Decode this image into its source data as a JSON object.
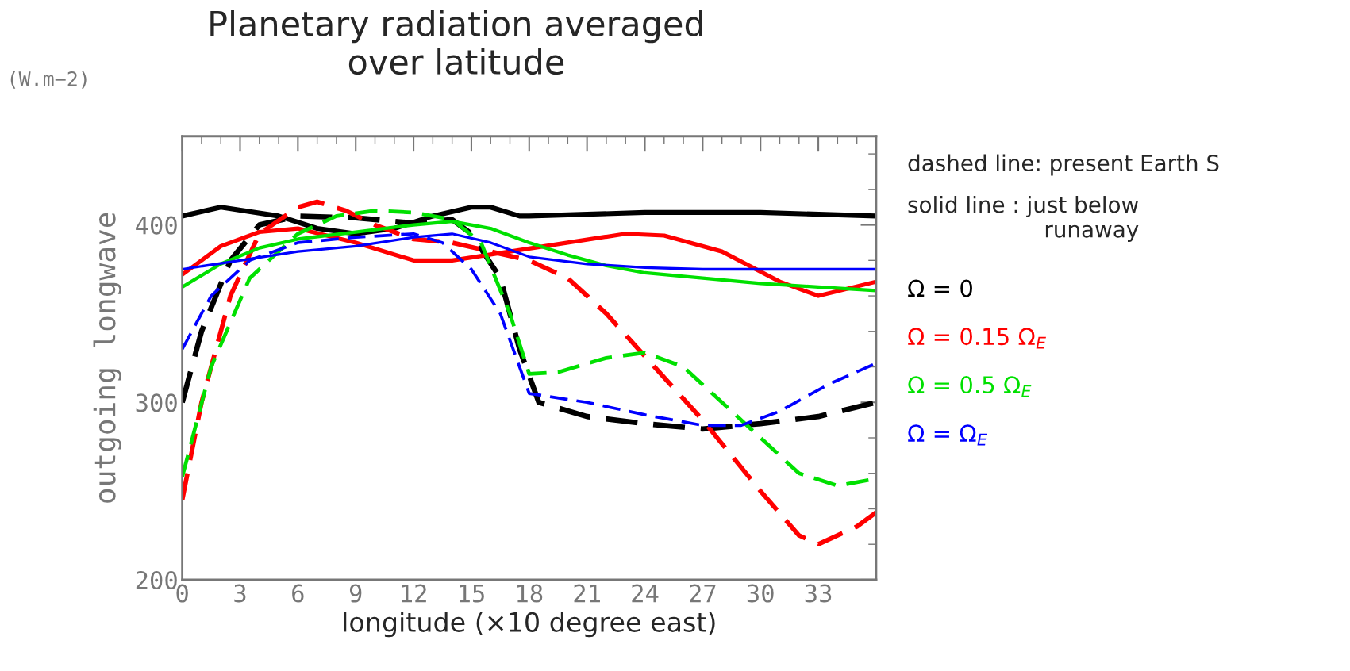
{
  "chart_data": {
    "type": "line",
    "title": "Planetary radiation averaged\nover latitude",
    "xlabel": "longitude (×10 degree east)",
    "ylabel": "outgoing longwave",
    "annotations": [
      "(W.m−2)",
      "dashed line: present Earth S",
      "solid line : just below\nrunaway"
    ],
    "xlim": [
      0,
      36
    ],
    "xticks": [
      0,
      3,
      6,
      9,
      12,
      15,
      18,
      21,
      24,
      27,
      30,
      33
    ],
    "ylim": [
      200,
      450
    ],
    "yticks": [
      200,
      300,
      400
    ],
    "grid": false,
    "legend": "right",
    "series": [
      {
        "name": "Ω = 0",
        "color": "#000000",
        "line_style": "dashed",
        "x": [
          0,
          1,
          2.5,
          4,
          6,
          9,
          12,
          14,
          15,
          16.5,
          17.5,
          18.5,
          21,
          24,
          27,
          30,
          33,
          36
        ],
        "values": [
          300,
          340,
          380,
          400,
          405,
          404,
          401,
          403,
          395,
          370,
          330,
          300,
          292,
          288,
          285,
          288,
          292,
          300
        ]
      },
      {
        "color": "#000000",
        "line_style": "solid",
        "x": [
          0,
          2,
          5,
          7,
          9,
          11,
          13,
          15,
          16,
          17.5,
          18,
          24,
          30,
          36
        ],
        "values": [
          405,
          410,
          405,
          398,
          395,
          398,
          405,
          410,
          410,
          405,
          405,
          407,
          407,
          405
        ]
      },
      {
        "name": "Ω = 0.15 Ω$_{E}$",
        "color": "#ff0000",
        "line_style": "dashed",
        "x": [
          0,
          1,
          2.5,
          4,
          6,
          7,
          8.5,
          10,
          12,
          14,
          16,
          18,
          20,
          22,
          24.5,
          27,
          30,
          32,
          33,
          35,
          36
        ],
        "values": [
          245,
          300,
          360,
          395,
          410,
          413,
          408,
          400,
          392,
          390,
          385,
          380,
          370,
          350,
          320,
          290,
          250,
          225,
          220,
          230,
          238
        ]
      },
      {
        "color": "#ff0000",
        "line_style": "solid",
        "x": [
          0,
          2,
          4,
          6,
          9,
          12,
          14,
          17,
          20,
          23,
          25,
          28,
          31,
          33,
          36
        ],
        "values": [
          372,
          388,
          396,
          398,
          390,
          380,
          380,
          385,
          390,
          395,
          394,
          385,
          368,
          360,
          368
        ]
      },
      {
        "name": "Ω = 0.5 Ω$_{E}$",
        "color": "#00e000",
        "line_style": "dashed",
        "x": [
          0,
          1.5,
          3.5,
          6,
          8,
          10,
          12,
          14,
          15.5,
          17,
          18,
          19.5,
          22,
          24,
          26,
          28,
          30,
          32,
          34,
          36
        ],
        "values": [
          258,
          320,
          370,
          395,
          405,
          408,
          407,
          403,
          390,
          350,
          316,
          317,
          325,
          328,
          320,
          300,
          280,
          260,
          253,
          257
        ]
      },
      {
        "color": "#00e000",
        "line_style": "solid",
        "x": [
          0,
          2,
          4,
          6,
          9,
          12,
          14,
          16,
          18,
          20,
          22,
          24,
          27,
          30,
          33,
          36
        ],
        "values": [
          365,
          378,
          387,
          392,
          396,
          400,
          402,
          398,
          390,
          383,
          377,
          373,
          370,
          367,
          365,
          363
        ]
      },
      {
        "name": "Ω = Ω$_{E}$",
        "color": "#0000ff",
        "line_style": "dashed",
        "x": [
          0,
          1.5,
          3.5,
          6,
          9,
          12,
          13.5,
          15,
          16.5,
          17.5,
          18,
          21,
          24,
          27,
          29,
          31,
          33.5,
          36
        ],
        "values": [
          330,
          360,
          380,
          390,
          393,
          395,
          390,
          375,
          350,
          320,
          305,
          300,
          293,
          287,
          287,
          295,
          310,
          322
        ]
      },
      {
        "color": "#0000ff",
        "line_style": "solid",
        "x": [
          0,
          3,
          6,
          9,
          12,
          14,
          16,
          18,
          21,
          24,
          27,
          36
        ],
        "values": [
          375,
          380,
          385,
          388,
          393,
          395,
          390,
          382,
          378,
          376,
          375,
          375
        ]
      }
    ]
  }
}
